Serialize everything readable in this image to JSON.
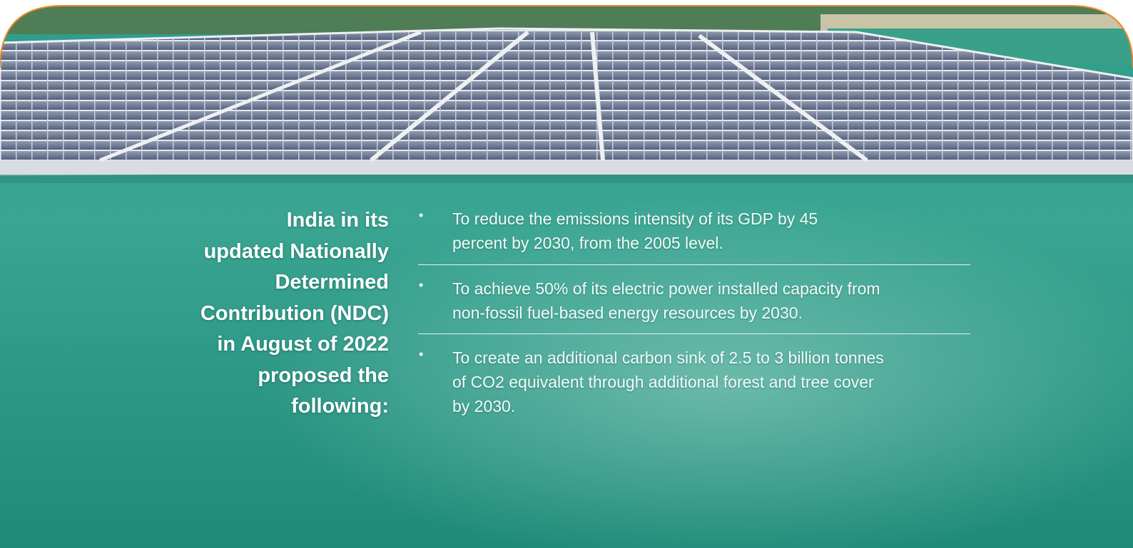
{
  "heading_lines": [
    "India in its",
    "updated Nationally",
    "Determined",
    "Contribution (NDC)",
    "in August of 2022",
    "proposed the",
    "following:"
  ],
  "bullets": [
    [
      "To reduce the emissions intensity of its GDP by 45",
      "percent by 2030, from the 2005 level."
    ],
    [
      "To achieve 50% of its electric power installed capacity from",
      "non-fossil fuel-based energy resources by 2030."
    ],
    [
      "To create an additional carbon sink of 2.5 to 3 billion tonnes",
      "of CO2 equivalent through additional forest and tree cover",
      "by 2030."
    ]
  ]
}
